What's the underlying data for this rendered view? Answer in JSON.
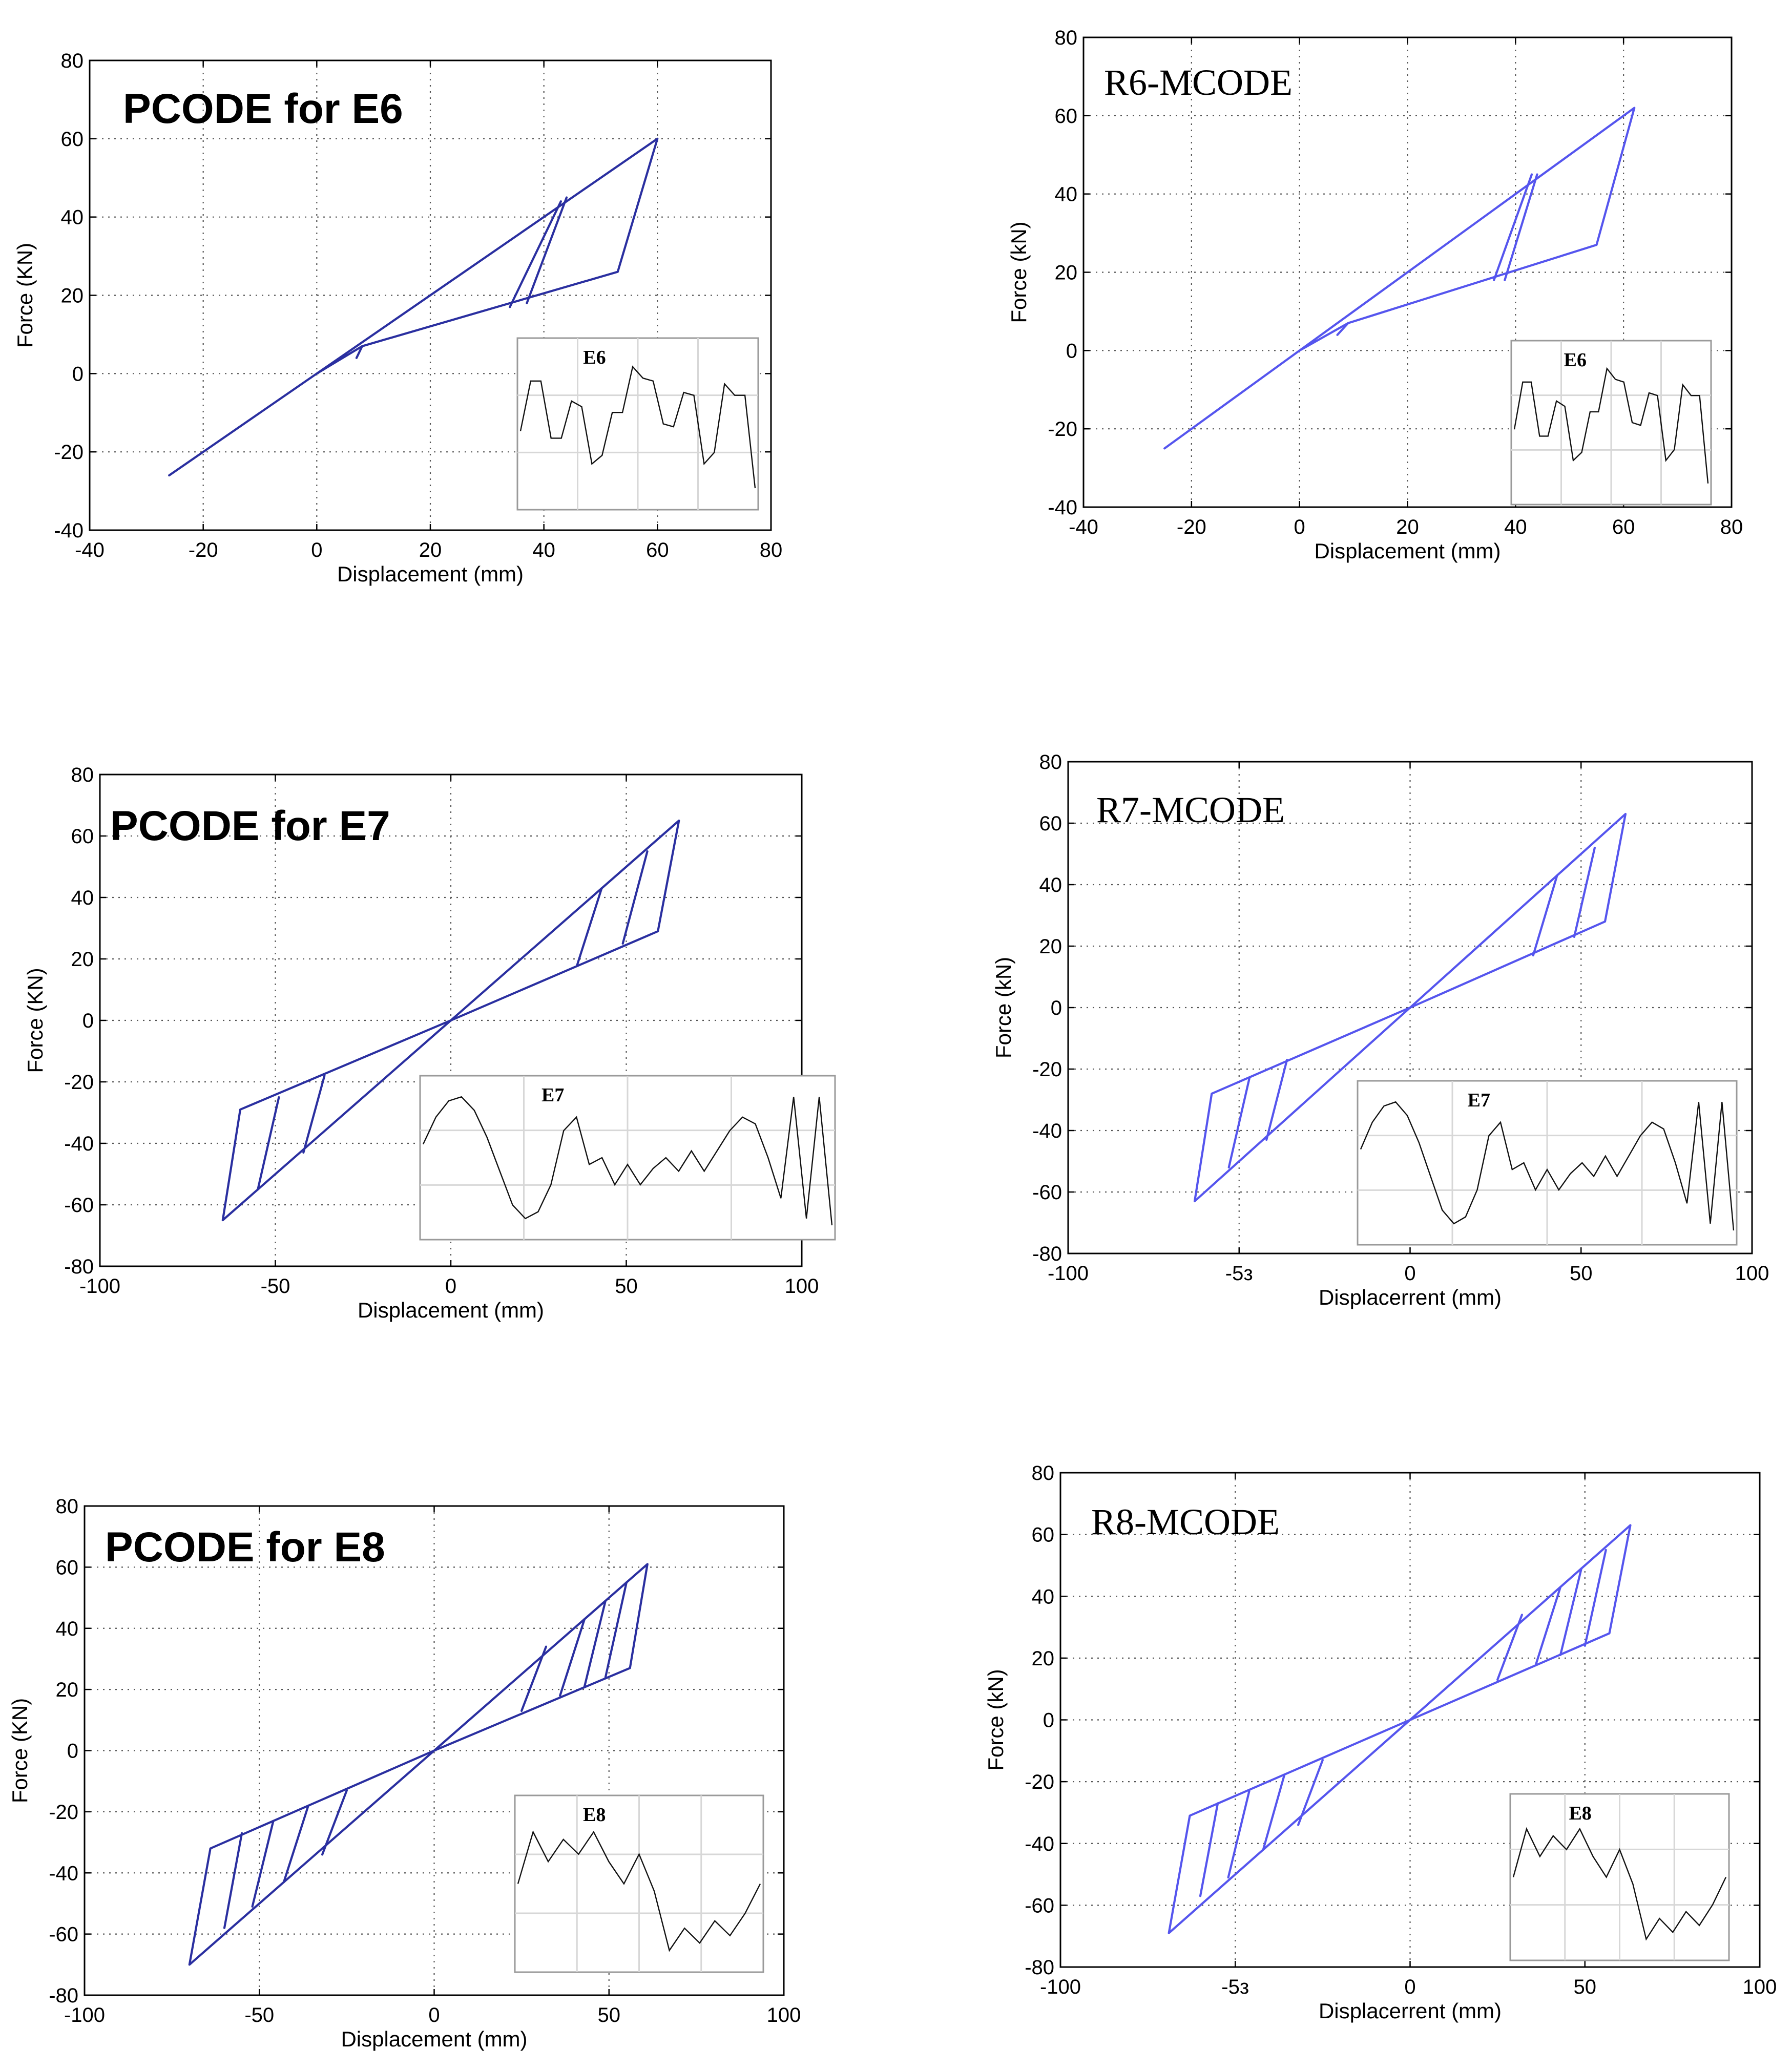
{
  "chart_data": [
    {
      "type": "line",
      "title": "PCODE for E6",
      "xlabel": "Displacement (mm)",
      "ylabel": "Force (KN)",
      "xlim": [
        -40,
        80
      ],
      "ylim": [
        -40,
        80
      ],
      "xticks": [
        "-40",
        "-20",
        "0",
        "20",
        "40",
        "60",
        "80"
      ],
      "yticks": [
        "80",
        "60",
        "40",
        "20",
        "0",
        "-20",
        "-40"
      ],
      "color": "#2a2fa0",
      "series": [
        {
          "x": [
            -26,
            0,
            60,
            53,
            8,
            0,
            -26
          ],
          "y": [
            -26,
            0,
            60,
            26,
            7,
            0,
            -26
          ]
        },
        {
          "x": [
            34,
            43
          ],
          "y": [
            17,
            44
          ]
        },
        {
          "x": [
            37,
            44
          ],
          "y": [
            18,
            45
          ]
        },
        {
          "x": [
            8,
            7
          ],
          "y": [
            7,
            4
          ]
        }
      ],
      "inset": {
        "label": "E6",
        "signal": [
          0.55,
          0.2,
          0.2,
          0.6,
          0.6,
          0.34,
          0.38,
          0.78,
          0.72,
          0.42,
          0.42,
          0.1,
          0.18,
          0.2,
          0.5,
          0.52,
          0.28,
          0.3,
          0.78,
          0.7,
          0.22,
          0.3,
          0.3,
          0.95
        ]
      }
    },
    {
      "type": "line",
      "title": "R6-MCODE",
      "xlabel": "Displacement (mm)",
      "ylabel": "Force (kN)",
      "xlim": [
        -40,
        80
      ],
      "ylim": [
        -40,
        80
      ],
      "xticks": [
        "-40",
        "-20",
        "0",
        "20",
        "40",
        "60",
        "80"
      ],
      "yticks": [
        "80",
        "60",
        "40",
        "20",
        "0",
        "-20",
        "-40"
      ],
      "color": "#5555ee",
      "series": [
        {
          "x": [
            -25,
            0,
            62,
            55,
            9,
            0,
            -25
          ],
          "y": [
            -25,
            0,
            62,
            27,
            7,
            0,
            -25
          ]
        },
        {
          "x": [
            36,
            43
          ],
          "y": [
            18,
            45
          ]
        },
        {
          "x": [
            38,
            44
          ],
          "y": [
            18,
            45
          ]
        },
        {
          "x": [
            9,
            7
          ],
          "y": [
            7,
            4
          ]
        }
      ],
      "inset": {
        "label": "E6",
        "signal": [
          0.55,
          0.2,
          0.2,
          0.6,
          0.6,
          0.34,
          0.38,
          0.78,
          0.72,
          0.42,
          0.42,
          0.1,
          0.18,
          0.2,
          0.5,
          0.52,
          0.28,
          0.3,
          0.78,
          0.7,
          0.22,
          0.3,
          0.3,
          0.95
        ]
      }
    },
    {
      "type": "line",
      "title": "PCODE for E7",
      "xlabel": "Displacement (mm)",
      "ylabel": "Force (KN)",
      "xlim": [
        -100,
        100
      ],
      "ylim": [
        -80,
        80
      ],
      "xticks": [
        "-100",
        "-50",
        "0",
        "50",
        "100"
      ],
      "yticks": [
        "80",
        "60",
        "40",
        "20",
        "0",
        "-20",
        "-40",
        "-60",
        "-80"
      ],
      "color": "#2a2fa0",
      "series": [
        {
          "x": [
            -65,
            0,
            65,
            59,
            0,
            -60,
            -65
          ],
          "y": [
            -65,
            0,
            65,
            29,
            0,
            -29,
            -65
          ]
        },
        {
          "x": [
            36,
            43
          ],
          "y": [
            18,
            43
          ]
        },
        {
          "x": [
            49,
            56
          ],
          "y": [
            25,
            55
          ]
        },
        {
          "x": [
            -36,
            -42
          ],
          "y": [
            -18,
            -43
          ]
        },
        {
          "x": [
            -49,
            -55
          ],
          "y": [
            -25,
            -55
          ]
        }
      ],
      "inset": {
        "label": "E7",
        "signal": [
          0.4,
          0.2,
          0.08,
          0.05,
          0.15,
          0.35,
          0.6,
          0.85,
          0.95,
          0.9,
          0.7,
          0.3,
          0.2,
          0.55,
          0.5,
          0.7,
          0.55,
          0.7,
          0.58,
          0.5,
          0.6,
          0.45,
          0.6,
          0.45,
          0.3,
          0.2,
          0.25,
          0.5,
          0.8,
          0.05,
          0.95,
          0.05,
          1.0
        ]
      }
    },
    {
      "type": "line",
      "title": "R7-MCODE",
      "xlabel": "Displacerrent (mm)",
      "ylabel": "Force (kN)",
      "xlim": [
        -100,
        100
      ],
      "ylim": [
        -80,
        80
      ],
      "xticks": [
        "-100",
        "-5з",
        "0",
        "50",
        "100"
      ],
      "yticks": [
        "80",
        "60",
        "40",
        "20",
        "0",
        "-20",
        "-40",
        "-60",
        "-80"
      ],
      "color": "#5555ee",
      "series": [
        {
          "x": [
            -63,
            0,
            63,
            57,
            0,
            -58,
            -63
          ],
          "y": [
            -63,
            0,
            63,
            28,
            0,
            -28,
            -63
          ]
        },
        {
          "x": [
            36,
            43
          ],
          "y": [
            17,
            43
          ]
        },
        {
          "x": [
            48,
            54
          ],
          "y": [
            23,
            52
          ]
        },
        {
          "x": [
            -36,
            -42
          ],
          "y": [
            -17,
            -43
          ]
        },
        {
          "x": [
            -47,
            -53
          ],
          "y": [
            -23,
            -52
          ]
        }
      ],
      "inset": {
        "label": "E7",
        "signal": [
          0.4,
          0.2,
          0.08,
          0.05,
          0.15,
          0.35,
          0.6,
          0.85,
          0.95,
          0.9,
          0.7,
          0.3,
          0.2,
          0.55,
          0.5,
          0.7,
          0.55,
          0.7,
          0.58,
          0.5,
          0.6,
          0.45,
          0.6,
          0.45,
          0.3,
          0.2,
          0.25,
          0.5,
          0.8,
          0.05,
          0.95,
          0.05,
          1.0
        ]
      }
    },
    {
      "type": "line",
      "title": "PCODE for E8",
      "xlabel": "Displacement (mm)",
      "ylabel": "Force (KN)",
      "xlim": [
        -100,
        100
      ],
      "ylim": [
        -80,
        80
      ],
      "xticks": [
        "-100",
        "-50",
        "0",
        "50",
        "100"
      ],
      "yticks": [
        "80",
        "60",
        "40",
        "20",
        "0",
        "-20",
        "-40",
        "-60",
        "-80"
      ],
      "color": "#2a2fa0",
      "series": [
        {
          "x": [
            -70,
            0,
            61,
            56,
            0,
            -64,
            -70
          ],
          "y": [
            -70,
            0,
            61,
            27,
            0,
            -32,
            -70
          ]
        },
        {
          "x": [
            25,
            32
          ],
          "y": [
            13,
            34
          ]
        },
        {
          "x": [
            36,
            43
          ],
          "y": [
            18,
            43
          ]
        },
        {
          "x": [
            43,
            49
          ],
          "y": [
            21,
            49
          ]
        },
        {
          "x": [
            49,
            55
          ],
          "y": [
            24,
            55
          ]
        },
        {
          "x": [
            -25,
            -32
          ],
          "y": [
            -13,
            -34
          ]
        },
        {
          "x": [
            -36,
            -43
          ],
          "y": [
            -18,
            -43
          ]
        },
        {
          "x": [
            -46,
            -52
          ],
          "y": [
            -23,
            -51
          ]
        },
        {
          "x": [
            -55,
            -60
          ],
          "y": [
            -27,
            -58
          ]
        }
      ],
      "inset": {
        "label": "E8",
        "signal": [
          0.5,
          0.15,
          0.35,
          0.2,
          0.3,
          0.15,
          0.35,
          0.5,
          0.3,
          0.55,
          0.95,
          0.8,
          0.9,
          0.75,
          0.85,
          0.7,
          0.5
        ]
      }
    },
    {
      "type": "line",
      "title": "R8-MCODE",
      "xlabel": "Displacerrent (mm)",
      "ylabel": "Force (kN)",
      "xlim": [
        -100,
        100
      ],
      "ylim": [
        -80,
        80
      ],
      "xticks": [
        "-100",
        "-5з",
        "0",
        "50",
        "100"
      ],
      "yticks": [
        "80",
        "60",
        "40",
        "20",
        "0",
        "-20",
        "-40",
        "-60",
        "-80"
      ],
      "color": "#5555ee",
      "series": [
        {
          "x": [
            -69,
            0,
            63,
            57,
            0,
            -63,
            -69
          ],
          "y": [
            -69,
            0,
            63,
            28,
            0,
            -31,
            -69
          ]
        },
        {
          "x": [
            25,
            32
          ],
          "y": [
            13,
            34
          ]
        },
        {
          "x": [
            36,
            43
          ],
          "y": [
            18,
            43
          ]
        },
        {
          "x": [
            43,
            49
          ],
          "y": [
            21,
            49
          ]
        },
        {
          "x": [
            50,
            56
          ],
          "y": [
            24,
            55
          ]
        },
        {
          "x": [
            -25,
            -32
          ],
          "y": [
            -13,
            -34
          ]
        },
        {
          "x": [
            -36,
            -42
          ],
          "y": [
            -18,
            -42
          ]
        },
        {
          "x": [
            -46,
            -52
          ],
          "y": [
            -23,
            -51
          ]
        },
        {
          "x": [
            -55,
            -60
          ],
          "y": [
            -27,
            -57
          ]
        }
      ],
      "inset": {
        "label": "E8",
        "signal": [
          0.5,
          0.15,
          0.35,
          0.2,
          0.3,
          0.15,
          0.35,
          0.5,
          0.3,
          0.55,
          0.95,
          0.8,
          0.9,
          0.75,
          0.85,
          0.7,
          0.5
        ]
      }
    }
  ]
}
